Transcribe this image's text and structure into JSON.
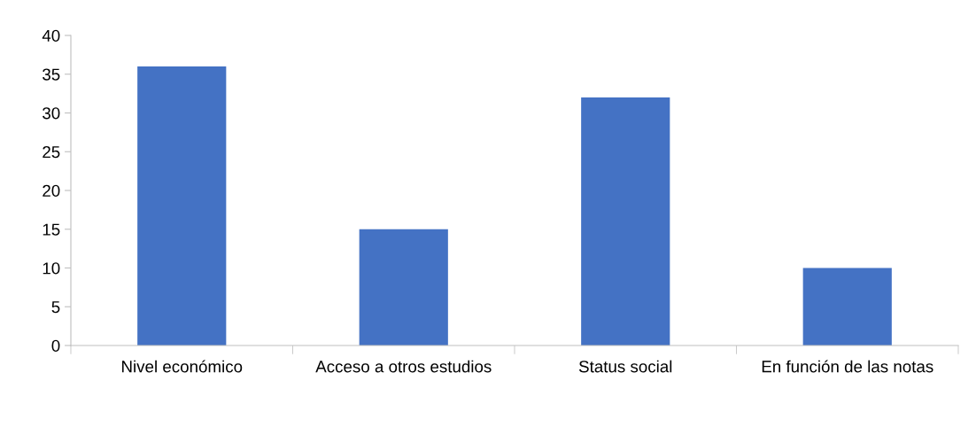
{
  "chart_data": {
    "type": "bar",
    "categories": [
      "Nivel económico",
      "Acceso a otros estudios",
      "Status social",
      "En función de las notas"
    ],
    "values": [
      36,
      15,
      32,
      10
    ],
    "color": "#4472c4",
    "ylim": [
      0,
      40
    ],
    "yticks": [
      0,
      5,
      10,
      15,
      20,
      25,
      30,
      35,
      40
    ],
    "grid": false,
    "legend": false
  }
}
